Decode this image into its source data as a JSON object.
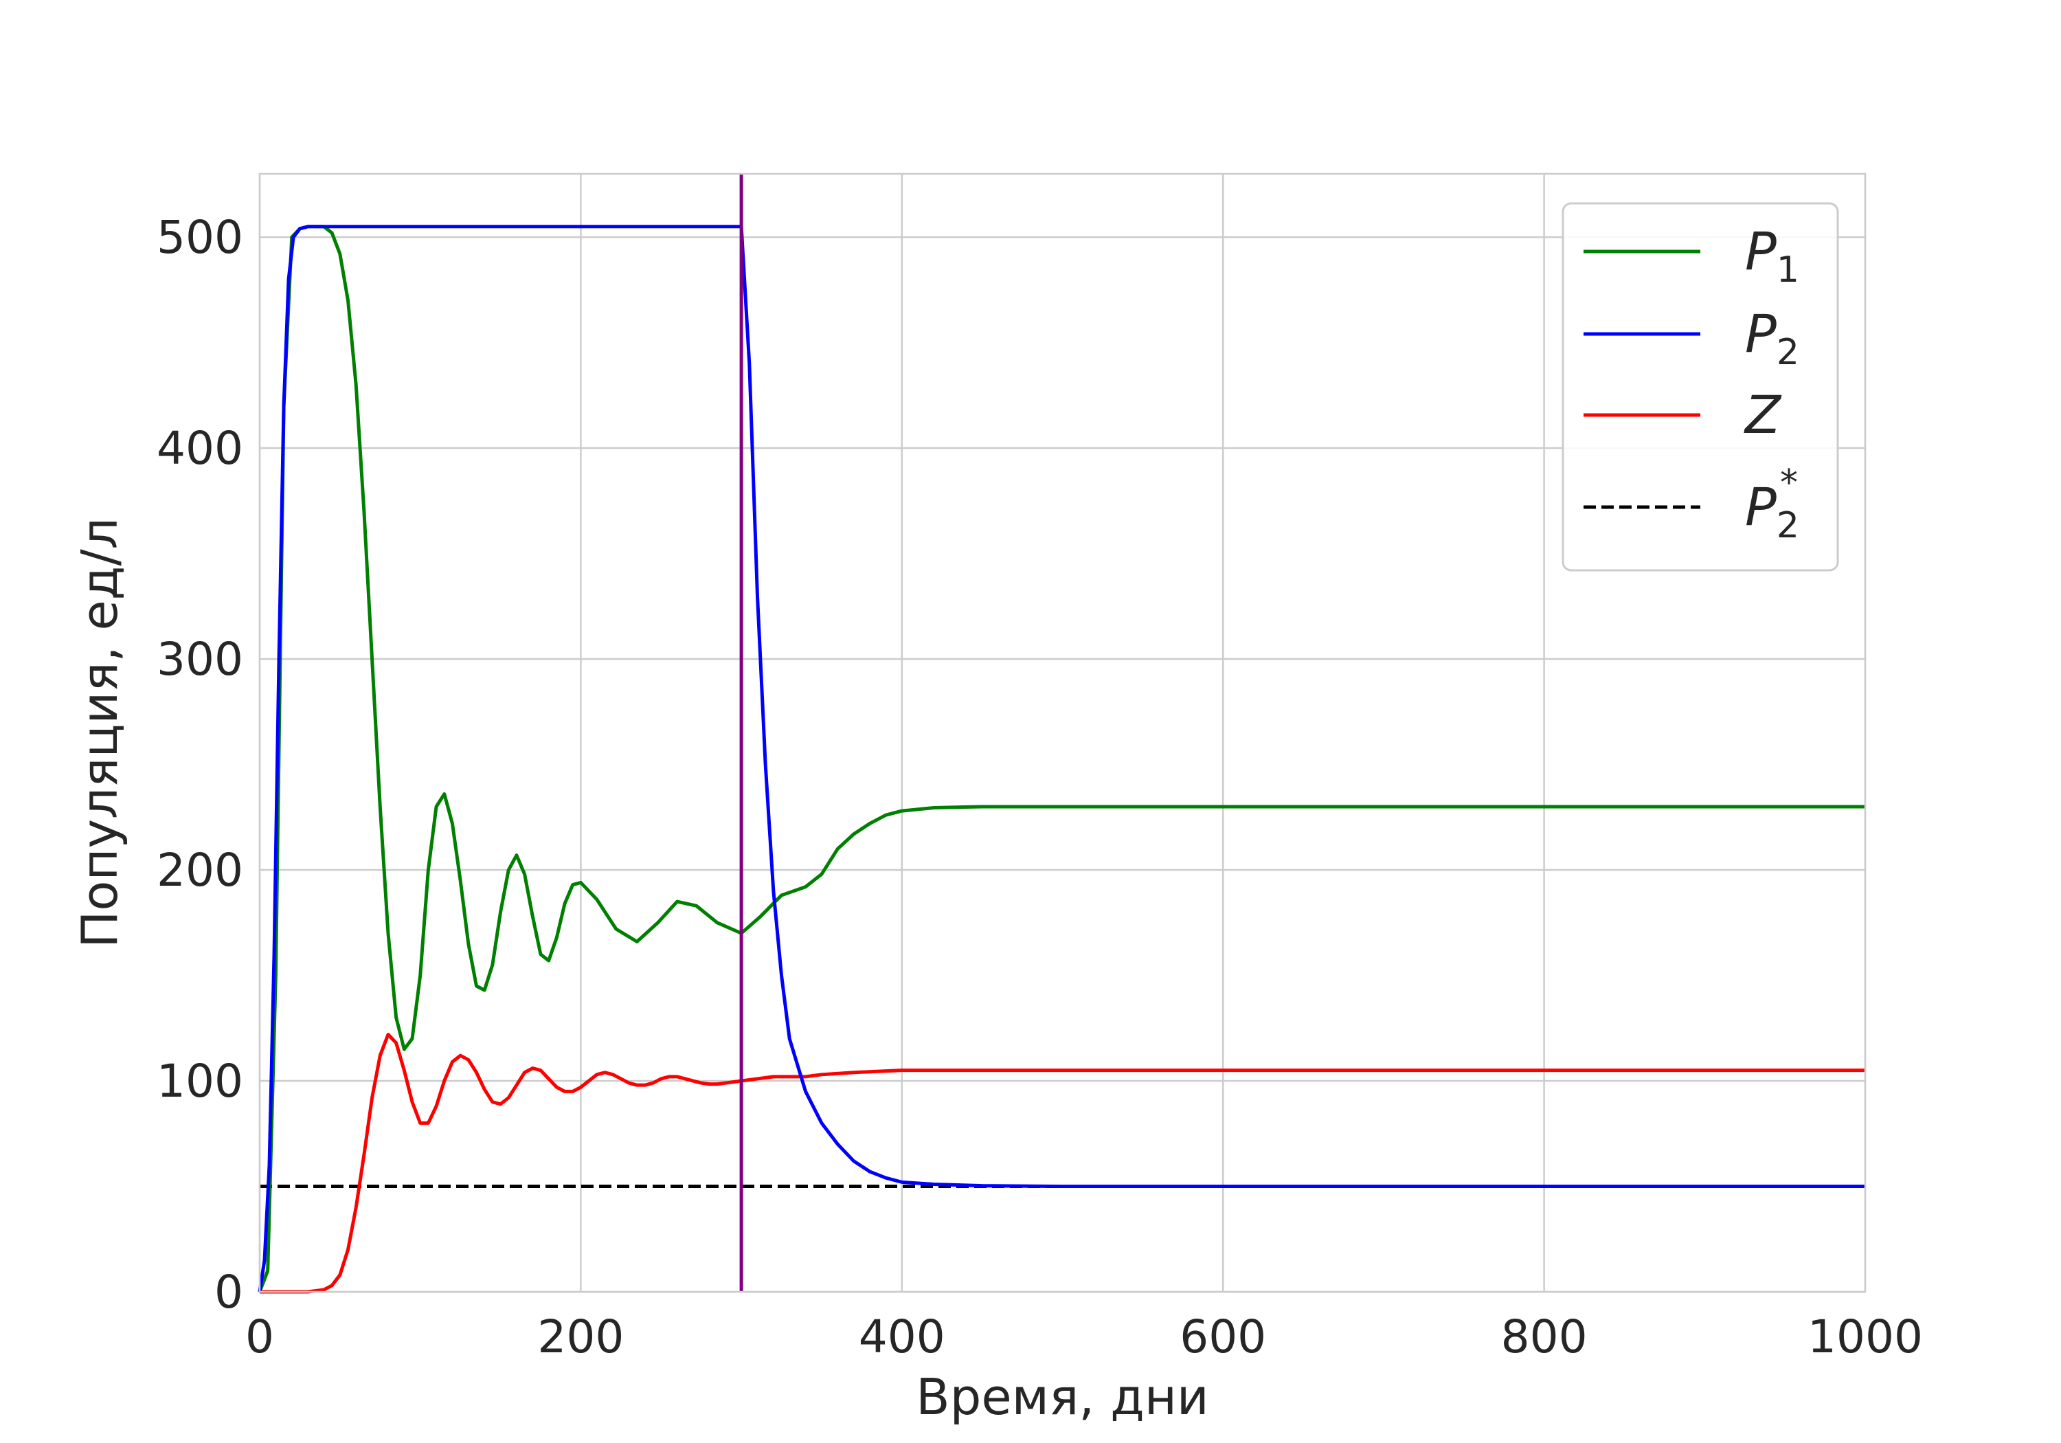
{
  "chart_data": {
    "type": "line",
    "title": "",
    "xlabel": "Время, дни",
    "ylabel": "Популяция, ед/л",
    "xlim": [
      0,
      1000
    ],
    "ylim": [
      0,
      530
    ],
    "x_ticks": [
      0,
      200,
      400,
      600,
      800,
      1000
    ],
    "y_ticks": [
      0,
      100,
      200,
      300,
      400,
      500
    ],
    "x_tick_labels": [
      "0",
      "200",
      "400",
      "600",
      "800",
      "1000"
    ],
    "y_tick_labels": [
      "0",
      "100",
      "200",
      "300",
      "400",
      "500"
    ],
    "grid": true,
    "legend_position": "top-right",
    "vertical_line": {
      "x": 300,
      "color": "#800080"
    },
    "series": [
      {
        "key": "p1",
        "legend_main": "P",
        "legend_sub": "1",
        "legend_sup": "",
        "color": "#008000",
        "dashed": false,
        "x": [
          0,
          5,
          10,
          15,
          20,
          25,
          30,
          35,
          40,
          45,
          50,
          55,
          60,
          65,
          70,
          75,
          80,
          85,
          90,
          95,
          100,
          105,
          110,
          115,
          120,
          125,
          130,
          135,
          140,
          145,
          150,
          155,
          160,
          165,
          170,
          175,
          180,
          185,
          190,
          195,
          200,
          210,
          222,
          235,
          248,
          260,
          272,
          285,
          300,
          312,
          325,
          340,
          350,
          360,
          370,
          380,
          390,
          400,
          420,
          450,
          500,
          600,
          800,
          1000
        ],
        "y": [
          0,
          10,
          150,
          420,
          500,
          504,
          505,
          505,
          505,
          502,
          492,
          470,
          430,
          370,
          300,
          230,
          170,
          130,
          115,
          120,
          150,
          200,
          230,
          236,
          222,
          195,
          165,
          145,
          143,
          155,
          180,
          200,
          207,
          198,
          178,
          160,
          157,
          168,
          184,
          193,
          194,
          186,
          172,
          166,
          175,
          185,
          183,
          175,
          170,
          178,
          188,
          192,
          198,
          210,
          217,
          222,
          226,
          228,
          229.5,
          230,
          230,
          230,
          230,
          230
        ]
      },
      {
        "key": "p2",
        "legend_main": "P",
        "legend_sub": "2",
        "legend_sup": "",
        "color": "#0000ff",
        "dashed": false,
        "x": [
          0,
          3,
          6,
          9,
          12,
          15,
          18,
          21,
          25,
          30,
          40,
          60,
          100,
          150,
          200,
          250,
          299.9,
          300,
          305,
          310,
          315,
          320,
          325,
          330,
          340,
          350,
          360,
          370,
          380,
          390,
          400,
          420,
          450,
          500,
          600,
          800,
          1000
        ],
        "y": [
          0,
          15,
          60,
          160,
          300,
          420,
          480,
          500,
          504,
          505,
          505,
          505,
          505,
          505,
          505,
          505,
          505,
          505,
          440,
          330,
          250,
          190,
          150,
          120,
          95,
          80,
          70,
          62,
          57,
          54,
          52,
          51,
          50.3,
          50,
          50,
          50,
          50
        ]
      },
      {
        "key": "z",
        "legend_main": "Z",
        "legend_sub": "",
        "legend_sup": "",
        "color": "#ff0000",
        "dashed": false,
        "x": [
          0,
          20,
          30,
          40,
          45,
          50,
          55,
          60,
          65,
          70,
          75,
          80,
          85,
          90,
          95,
          100,
          105,
          110,
          115,
          120,
          125,
          130,
          135,
          140,
          145,
          150,
          155,
          160,
          165,
          170,
          175,
          180,
          185,
          190,
          195,
          200,
          205,
          210,
          215,
          220,
          225,
          230,
          235,
          240,
          245,
          250,
          255,
          260,
          265,
          270,
          275,
          280,
          285,
          290,
          295,
          300,
          310,
          320,
          330,
          340,
          350,
          370,
          400,
          450,
          500,
          600,
          800,
          1000
        ],
        "y": [
          0,
          0,
          0,
          1,
          3,
          8,
          20,
          40,
          65,
          92,
          112,
          122,
          118,
          105,
          90,
          80,
          80,
          88,
          100,
          109,
          112,
          110,
          104,
          96,
          90,
          89,
          92,
          98,
          104,
          106,
          105,
          101,
          97,
          95,
          95,
          97,
          100,
          103,
          104,
          103,
          101,
          99,
          98,
          98,
          99,
          101,
          102,
          102,
          101,
          100,
          99,
          98.5,
          98.5,
          99,
          99.5,
          100,
          101,
          102,
          102,
          102,
          103,
          104,
          105,
          105,
          105,
          105,
          105,
          105
        ]
      },
      {
        "key": "p2star",
        "legend_main": "P",
        "legend_sub": "2",
        "legend_sup": "*",
        "color": "#000000",
        "dashed": true,
        "x": [
          0,
          1000
        ],
        "y": [
          50,
          50
        ]
      }
    ]
  }
}
